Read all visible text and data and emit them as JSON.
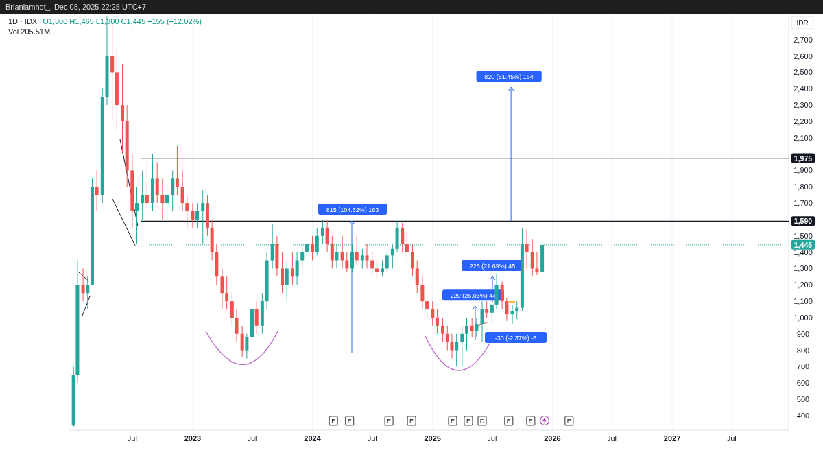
{
  "chart_data": {
    "type": "candlestick",
    "title": "1D · IDX",
    "subtitle": "O1,300 H1,465 L1,300 C1,445 +155 (+12.02%)",
    "ylabel": "IDR",
    "x": [
      "2022-01-03",
      "2022-01-15",
      "2022-02-01",
      "2022-02-15",
      "2022-03-01",
      "2022-03-15",
      "2022-04-01",
      "2022-04-15",
      "2022-05-01",
      "2022-05-15",
      "2022-06-01",
      "2022-06-15",
      "2022-07-01",
      "2022-07-15",
      "2022-08-01",
      "2022-08-15",
      "2022-09-01",
      "2022-09-15",
      "2022-10-01",
      "2022-10-15",
      "2022-11-01",
      "2022-11-15",
      "2022-12-01",
      "2022-12-15",
      "2023-01-01",
      "2023-01-15",
      "2023-02-01",
      "2023-02-15",
      "2023-03-01",
      "2023-03-15",
      "2023-04-01",
      "2023-04-15",
      "2023-05-01",
      "2023-05-15",
      "2023-06-01",
      "2023-06-15",
      "2023-07-01",
      "2023-07-15",
      "2023-08-01",
      "2023-08-15",
      "2023-09-01",
      "2023-09-15",
      "2023-10-01",
      "2023-10-15",
      "2023-11-01",
      "2023-11-15",
      "2023-12-01",
      "2023-12-15",
      "2024-01-01",
      "2024-01-15",
      "2024-02-01",
      "2024-02-15",
      "2024-03-01",
      "2024-03-15",
      "2024-04-01",
      "2024-04-15",
      "2024-05-01",
      "2024-05-15",
      "2024-06-01",
      "2024-06-15",
      "2024-07-01",
      "2024-07-15",
      "2024-08-01",
      "2024-08-15",
      "2024-09-01",
      "2024-09-15",
      "2024-10-01",
      "2024-10-15",
      "2024-11-01",
      "2024-11-15",
      "2024-12-01",
      "2024-12-15",
      "2025-01-01",
      "2025-01-15",
      "2025-02-01",
      "2025-02-15",
      "2025-03-01",
      "2025-03-15",
      "2025-04-01",
      "2025-04-15",
      "2025-05-01",
      "2025-05-15",
      "2025-06-01",
      "2025-06-15",
      "2025-07-01",
      "2025-07-15",
      "2025-08-01",
      "2025-08-15",
      "2025-09-01",
      "2025-09-15",
      "2025-10-01",
      "2025-10-15",
      "2025-11-01",
      "2025-11-15",
      "2025-12-01"
    ],
    "ohlc": [
      [
        340,
        700,
        330,
        650
      ],
      [
        650,
        1350,
        600,
        1200
      ],
      [
        1200,
        1300,
        1100,
        1150
      ],
      [
        1150,
        1250,
        1050,
        1200
      ],
      [
        1200,
        1850,
        1200,
        1800
      ],
      [
        1800,
        1900,
        1650,
        1750
      ],
      [
        1750,
        2400,
        1700,
        2350
      ],
      [
        2350,
        2840,
        2300,
        2600
      ],
      [
        2600,
        2800,
        2200,
        2500
      ],
      [
        2500,
        2650,
        2150,
        2300
      ],
      [
        2300,
        2550,
        2000,
        2200
      ],
      [
        2200,
        2300,
        1800,
        1900
      ],
      [
        1900,
        2000,
        1550,
        1650
      ],
      [
        1650,
        1800,
        1450,
        1700
      ],
      [
        1700,
        1900,
        1600,
        1750
      ],
      [
        1750,
        1950,
        1650,
        1700
      ],
      [
        1700,
        2000,
        1650,
        1850
      ],
      [
        1850,
        1950,
        1700,
        1750
      ],
      [
        1750,
        1850,
        1600,
        1700
      ],
      [
        1700,
        1800,
        1600,
        1750
      ],
      [
        1750,
        1900,
        1650,
        1850
      ],
      [
        1850,
        2050,
        1750,
        1800
      ],
      [
        1800,
        1900,
        1650,
        1700
      ],
      [
        1700,
        1750,
        1550,
        1650
      ],
      [
        1650,
        1700,
        1550,
        1600
      ],
      [
        1600,
        1700,
        1550,
        1650
      ],
      [
        1650,
        1780,
        1450,
        1700
      ],
      [
        1700,
        1750,
        1500,
        1550
      ],
      [
        1550,
        1600,
        1350,
        1400
      ],
      [
        1400,
        1450,
        1200,
        1250
      ],
      [
        1250,
        1300,
        1050,
        1150
      ],
      [
        1150,
        1250,
        1050,
        1100
      ],
      [
        1100,
        1150,
        950,
        1000
      ],
      [
        1000,
        1050,
        850,
        900
      ],
      [
        900,
        950,
        760,
        800
      ],
      [
        800,
        900,
        750,
        880
      ],
      [
        880,
        1100,
        850,
        1050
      ],
      [
        1050,
        1100,
        900,
        950
      ],
      [
        950,
        1150,
        900,
        1100
      ],
      [
        1100,
        1400,
        1050,
        1350
      ],
      [
        1350,
        1570,
        1300,
        1450
      ],
      [
        1450,
        1500,
        1250,
        1300
      ],
      [
        1300,
        1400,
        1150,
        1200
      ],
      [
        1200,
        1350,
        1100,
        1300
      ],
      [
        1300,
        1400,
        1200,
        1250
      ],
      [
        1250,
        1400,
        1200,
        1350
      ],
      [
        1350,
        1450,
        1300,
        1400
      ],
      [
        1400,
        1500,
        1350,
        1450
      ],
      [
        1450,
        1500,
        1350,
        1400
      ],
      [
        1400,
        1550,
        1380,
        1500
      ],
      [
        1500,
        1600,
        1450,
        1550
      ],
      [
        1550,
        1600,
        1400,
        1450
      ],
      [
        1450,
        1500,
        1300,
        1350
      ],
      [
        1350,
        1450,
        1300,
        1400
      ],
      [
        1400,
        1500,
        1300,
        1350
      ],
      [
        1350,
        1400,
        1280,
        1300
      ],
      [
        1300,
        1450,
        1280,
        1400
      ],
      [
        1400,
        1500,
        1320,
        1350
      ],
      [
        1350,
        1420,
        1300,
        1380
      ],
      [
        1380,
        1450,
        1300,
        1350
      ],
      [
        1350,
        1400,
        1260,
        1300
      ],
      [
        1300,
        1350,
        1240,
        1280
      ],
      [
        1280,
        1350,
        1250,
        1300
      ],
      [
        1300,
        1400,
        1280,
        1380
      ],
      [
        1380,
        1450,
        1300,
        1420
      ],
      [
        1420,
        1590,
        1400,
        1550
      ],
      [
        1550,
        1580,
        1400,
        1450
      ],
      [
        1450,
        1500,
        1350,
        1400
      ],
      [
        1400,
        1450,
        1250,
        1300
      ],
      [
        1300,
        1350,
        1150,
        1200
      ],
      [
        1200,
        1250,
        1050,
        1100
      ],
      [
        1100,
        1150,
        1000,
        1050
      ],
      [
        1050,
        1100,
        950,
        1000
      ],
      [
        1000,
        1050,
        900,
        950
      ],
      [
        950,
        1000,
        850,
        900
      ],
      [
        900,
        950,
        800,
        850
      ],
      [
        850,
        900,
        750,
        800
      ],
      [
        800,
        900,
        700,
        850
      ],
      [
        850,
        950,
        700,
        900
      ],
      [
        900,
        1000,
        800,
        950
      ],
      [
        950,
        1000,
        880,
        920
      ],
      [
        920,
        1000,
        880,
        960
      ],
      [
        960,
        1100,
        850,
        1050
      ],
      [
        1050,
        1100,
        1000,
        1030
      ],
      [
        1030,
        1100,
        960,
        1080
      ],
      [
        1080,
        1270,
        1050,
        1200
      ],
      [
        1200,
        1220,
        1050,
        1100
      ],
      [
        1100,
        1120,
        980,
        1020
      ],
      [
        1020,
        1080,
        960,
        1040
      ],
      [
        1040,
        1100,
        990,
        1060
      ],
      [
        1060,
        1550,
        1040,
        1450
      ],
      [
        1450,
        1540,
        1300,
        1400
      ],
      [
        1400,
        1480,
        1250,
        1300
      ],
      [
        1300,
        1400,
        1260,
        1280
      ],
      [
        1280,
        1465,
        1260,
        1445
      ]
    ],
    "colors": [
      "#26a69a",
      "#26a69a",
      "#ef5350",
      "#26a69a",
      "#26a69a",
      "#ef5350",
      "#26a69a",
      "#26a69a",
      "#ef5350",
      "#ef5350",
      "#ef5350",
      "#ef5350",
      "#ef5350",
      "#26a69a",
      "#26a69a",
      "#ef5350",
      "#26a69a",
      "#ef5350",
      "#ef5350",
      "#26a69a",
      "#26a69a",
      "#ef5350",
      "#ef5350",
      "#ef5350",
      "#ef5350",
      "#26a69a",
      "#26a69a",
      "#ef5350",
      "#ef5350",
      "#ef5350",
      "#ef5350",
      "#ef5350",
      "#ef5350",
      "#ef5350",
      "#ef5350",
      "#26a69a",
      "#26a69a",
      "#ef5350",
      "#26a69a",
      "#26a69a",
      "#26a69a",
      "#ef5350",
      "#ef5350",
      "#26a69a",
      "#ef5350",
      "#26a69a",
      "#26a69a",
      "#26a69a",
      "#ef5350",
      "#26a69a",
      "#26a69a",
      "#ef5350",
      "#ef5350",
      "#26a69a",
      "#ef5350",
      "#ef5350",
      "#26a69a",
      "#ef5350",
      "#26a69a",
      "#ef5350",
      "#ef5350",
      "#ef5350",
      "#26a69a",
      "#26a69a",
      "#26a69a",
      "#26a69a",
      "#ef5350",
      "#ef5350",
      "#ef5350",
      "#ef5350",
      "#ef5350",
      "#ef5350",
      "#ef5350",
      "#ef5350",
      "#ef5350",
      "#ef5350",
      "#ef5350",
      "#26a69a",
      "#26a69a",
      "#26a69a",
      "#ef5350",
      "#26a69a",
      "#26a69a",
      "#ef5350",
      "#26a69a",
      "#26a69a",
      "#ef5350",
      "#ef5350",
      "#26a69a",
      "#26a69a",
      "#26a69a",
      "#ef5350",
      "#ef5350",
      "#ef5350",
      "#26a69a"
    ],
    "xlim": [
      "2021-12-19",
      "2027-12-22"
    ],
    "xticks": [
      {
        "value": "2022-07-01",
        "label": "Jul"
      },
      {
        "value": "2023-01-01",
        "label": "2023"
      },
      {
        "value": "2023-07-01",
        "label": "Jul"
      },
      {
        "value": "2024-01-01",
        "label": "2024"
      },
      {
        "value": "2024-07-01",
        "label": "Jul"
      },
      {
        "value": "2025-01-01",
        "label": "2025"
      },
      {
        "value": "2025-07-01",
        "label": "Jul"
      },
      {
        "value": "2026-01-01",
        "label": "2026"
      },
      {
        "value": "2026-07-01",
        "label": "Jul"
      },
      {
        "value": "2027-01-01",
        "label": "2027"
      },
      {
        "value": "2027-07-01",
        "label": "Jul"
      }
    ],
    "ylim": [
      320,
      2850
    ],
    "yticks": [
      400,
      500,
      600,
      700,
      800,
      900,
      {
        "value": 1000,
        "label": "1,000"
      },
      {
        "value": 1100,
        "label": "1,100"
      },
      {
        "value": 1200,
        "label": "1,200"
      },
      {
        "value": 1300,
        "label": "1,300"
      },
      {
        "value": 1400,
        "label": "1,400"
      },
      {
        "value": 1500,
        "label": "1,500"
      },
      {
        "value": 1700,
        "label": "1,700"
      },
      {
        "value": 1800,
        "label": "1,800"
      },
      {
        "value": 1900,
        "label": "1,900"
      },
      {
        "value": 2100,
        "label": "2,100"
      },
      {
        "value": 2200,
        "label": "2,200"
      },
      {
        "value": 2300,
        "label": "2,300"
      },
      {
        "value": 2400,
        "label": "2,400"
      },
      {
        "value": 2500,
        "label": "2,500"
      },
      {
        "value": 2600,
        "label": "2,600"
      },
      {
        "value": 2700,
        "label": "2,700"
      }
    ],
    "grid": "x",
    "ref_lines": [
      {
        "axis": "y",
        "value": 1975,
        "label": "1,975",
        "color": "#131722"
      },
      {
        "axis": "y",
        "value": 1590,
        "label": "1,590",
        "color": "#131722"
      },
      {
        "axis": "y",
        "value": 1445,
        "label": "1,445",
        "color": "#26a69a",
        "line_style": "dotted"
      }
    ],
    "annotations": [
      "Brianlamhot_, Dec 08, 2025 22:28 UTC+7",
      "Vol 205.51M",
      "815 (104.62%) 163",
      {
        "text": "820 (51.45%) 164",
        "x": "2025-08-28",
        "y": 1590
      },
      "225 (21.69%) 45",
      {
        "text": "220 (26.03%) 44",
        "x": "2025-05-11",
        "y": 1070
      },
      "-30 (-2.37%) -6",
      {
        "text": "E",
        "x": "2024-03-05"
      },
      {
        "text": "E",
        "x": "2024-04-23"
      },
      {
        "text": "E",
        "x": "2024-08-21"
      },
      {
        "text": "E",
        "x": "2024-10-29"
      },
      {
        "text": "E",
        "x": "2025-03-03"
      },
      {
        "text": "E",
        "x": "2025-04-20"
      },
      {
        "text": "D",
        "x": "2025-06-01"
      },
      {
        "text": "E",
        "x": "2025-08-21"
      },
      {
        "text": "E",
        "x": "2025-10-27"
      },
      {
        "text": "E",
        "x": "2026-02-21"
      }
    ]
  }
}
